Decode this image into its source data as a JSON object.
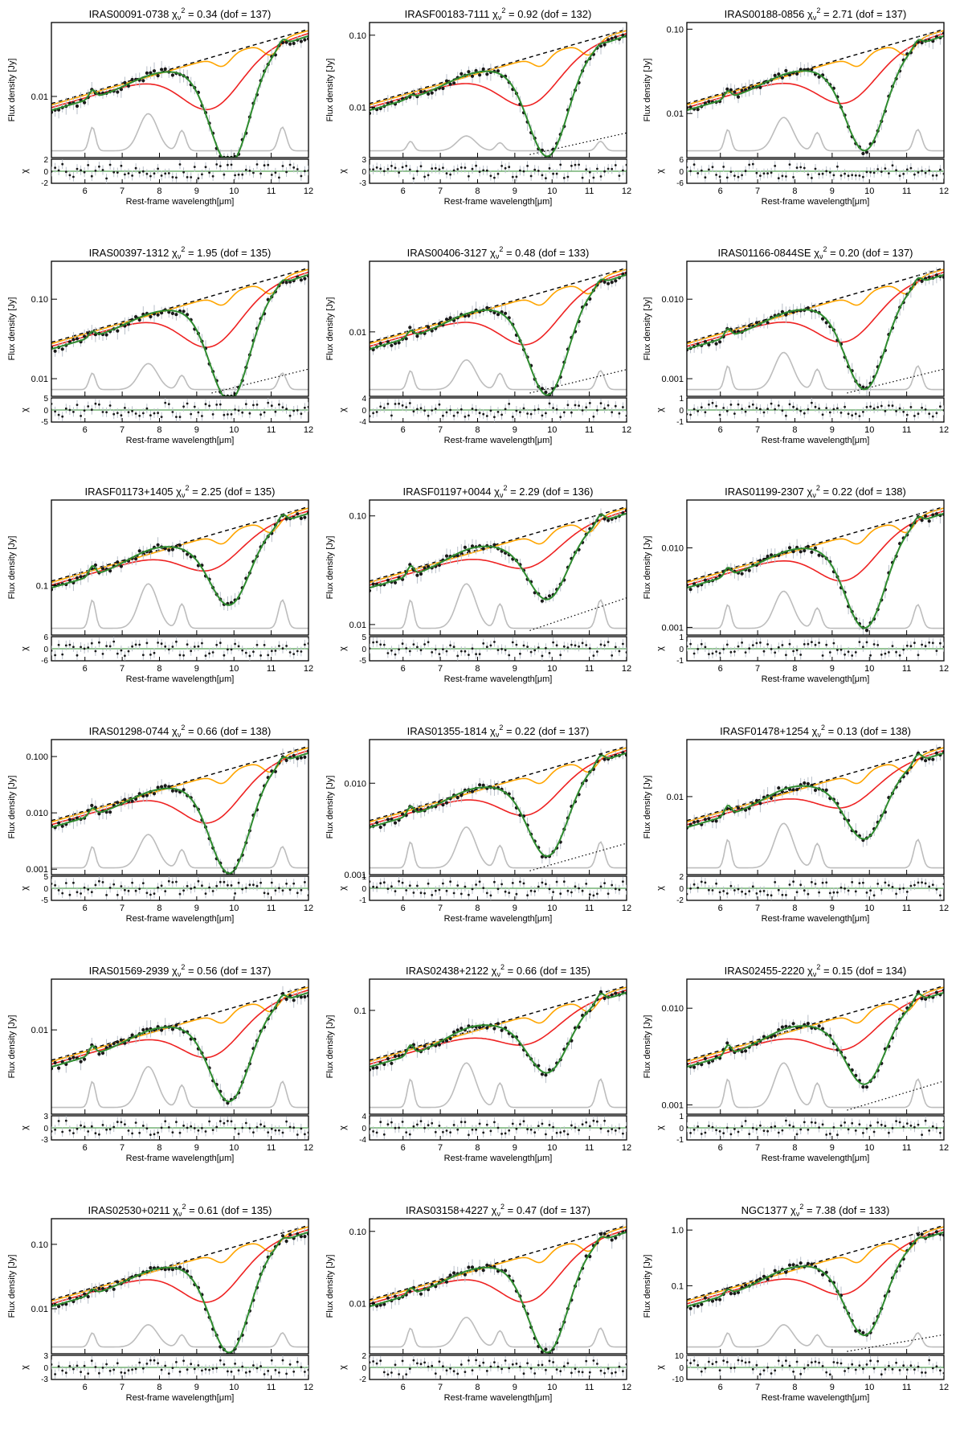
{
  "figure": {
    "ylabel_main": "Flux density [Jy]",
    "ylabel_resid": "χ",
    "xlabel": "Rest-frame wavelength[μm]",
    "chi_label": "χ",
    "chi_sub": "ν",
    "chi_sup": "2",
    "x_ticks": [
      "6",
      "7",
      "8",
      "9",
      "10",
      "11",
      "12"
    ],
    "colors": {
      "data": "#1a1a1a",
      "errorbar": "#b8bfc8",
      "model": "#2e8b2e",
      "continuum_dashed": "#000000",
      "orange": "#ffa500",
      "red": "#ee2222",
      "blue": "#1f2fe0",
      "pah": "#bdbdbd",
      "zero_line": "#2e8b2e"
    }
  },
  "chart_data": [
    {
      "type": "line",
      "name": "IRAS00091-0738",
      "chi2": "0.34",
      "dof": "137",
      "xlim": [
        5.1,
        12
      ],
      "ylim_log": [
        0.002,
        0.07
      ],
      "yticks": [
        "0.01"
      ],
      "resid_ticks": [
        "2",
        "0",
        "-2"
      ],
      "depth": 0.92,
      "pah": 0.5,
      "dotted": false,
      "xlabel": "Rest-frame wavelength[μm]"
    },
    {
      "type": "line",
      "name": "IRASF00183-7111",
      "chi2": "0.92",
      "dof": "132",
      "xlim": [
        5.1,
        12
      ],
      "ylim_log": [
        0.002,
        0.15
      ],
      "yticks": [
        "0.10",
        "0.01"
      ],
      "resid_ticks": [
        "3",
        "0",
        "-3"
      ],
      "depth": 0.85,
      "pah": 0.2,
      "dotted": true,
      "xlabel": "Rest-frame wavelength[μm]"
    },
    {
      "type": "line",
      "name": "IRAS00188-0856",
      "chi2": "2.71",
      "dof": "137",
      "xlim": [
        5.1,
        12
      ],
      "ylim_log": [
        0.003,
        0.12
      ],
      "yticks": [
        "0.10",
        "0.01"
      ],
      "resid_ticks": [
        "6",
        "0",
        "-6"
      ],
      "depth": 0.8,
      "pah": 0.45,
      "dotted": false,
      "xlabel": "Rest-frame wavelength[μm]"
    },
    {
      "type": "line",
      "name": "IRAS00397-1312",
      "chi2": "1.95",
      "dof": "135",
      "xlim": [
        5.1,
        12
      ],
      "ylim_log": [
        0.006,
        0.3
      ],
      "yticks": [
        "0.10",
        "0.01"
      ],
      "resid_ticks": [
        "5",
        "0",
        "-5"
      ],
      "depth": 0.9,
      "pah": 0.35,
      "dotted": true,
      "xlabel": "Rest-frame wavelength[μm]"
    },
    {
      "type": "line",
      "name": "IRAS00406-3127",
      "chi2": "0.48",
      "dof": "133",
      "xlim": [
        5.1,
        12
      ],
      "ylim_log": [
        0.0015,
        0.08
      ],
      "yticks": [
        "0.01"
      ],
      "resid_ticks": [
        "4",
        "0",
        "-4"
      ],
      "depth": 0.85,
      "pah": 0.4,
      "dotted": true,
      "xlabel": "Rest-frame wavelength[μm]"
    },
    {
      "type": "line",
      "name": "IRAS01166-0844SE",
      "chi2": "0.20",
      "dof": "137",
      "xlim": [
        5.1,
        12
      ],
      "ylim_log": [
        0.0006,
        0.03
      ],
      "yticks": [
        "0.010",
        "0.001"
      ],
      "resid_ticks": [
        "1",
        "0",
        "-1"
      ],
      "depth": 0.8,
      "pah": 0.5,
      "dotted": true,
      "xlabel": "Rest-frame wavelength[μm]"
    },
    {
      "type": "line",
      "name": "IRASF01173+1405",
      "chi2": "2.25",
      "dof": "135",
      "xlim": [
        5.1,
        12
      ],
      "ylim_log": [
        0.03,
        0.8
      ],
      "yticks": [
        "0.1"
      ],
      "resid_ticks": [
        "6",
        "0",
        "-6"
      ],
      "depth": 0.6,
      "pah": 0.6,
      "dotted": false,
      "xlabel": "Rest-frame wavelength[μm]"
    },
    {
      "type": "line",
      "name": "IRASF01197+0044",
      "chi2": "2.29",
      "dof": "136",
      "xlim": [
        5.1,
        12
      ],
      "ylim_log": [
        0.008,
        0.14
      ],
      "yticks": [
        "0.10",
        "0.01"
      ],
      "resid_ticks": [
        "5",
        "0",
        "-5"
      ],
      "depth": 0.55,
      "pah": 0.6,
      "dotted": true,
      "xlabel": "Rest-frame wavelength[μm]"
    },
    {
      "type": "line",
      "name": "IRAS01199-2307",
      "chi2": "0.22",
      "dof": "138",
      "xlim": [
        5.1,
        12
      ],
      "ylim_log": [
        0.0008,
        0.04
      ],
      "yticks": [
        "0.010",
        "0.001"
      ],
      "resid_ticks": [
        "1",
        "0",
        "-1"
      ],
      "depth": 0.8,
      "pah": 0.5,
      "dotted": false,
      "xlabel": "Rest-frame wavelength[μm]"
    },
    {
      "type": "line",
      "name": "IRAS01298-0744",
      "chi2": "0.66",
      "dof": "138",
      "xlim": [
        5.1,
        12
      ],
      "ylim_log": [
        0.0008,
        0.2
      ],
      "yticks": [
        "0.100",
        "0.010",
        "0.001"
      ],
      "resid_ticks": [
        "5",
        "0",
        "-5"
      ],
      "depth": 0.85,
      "pah": 0.45,
      "dotted": false,
      "xlabel": "Rest-frame wavelength[μm]"
    },
    {
      "type": "line",
      "name": "IRAS01355-1814",
      "chi2": "0.22",
      "dof": "137",
      "xlim": [
        5.1,
        12
      ],
      "ylim_log": [
        0.001,
        0.03
      ],
      "yticks": [
        "0.010",
        "0.001"
      ],
      "resid_ticks": [
        "1",
        "0",
        "-1"
      ],
      "depth": 0.7,
      "pah": 0.55,
      "dotted": true,
      "xlabel": "Rest-frame wavelength[μm]"
    },
    {
      "type": "line",
      "name": "IRASF01478+1254",
      "chi2": "0.13",
      "dof": "138",
      "xlim": [
        5.1,
        12
      ],
      "ylim_log": [
        0.0015,
        0.04
      ],
      "yticks": [
        "0.01"
      ],
      "resid_ticks": [
        "2",
        "0",
        "-2"
      ],
      "depth": 0.55,
      "pah": 0.6,
      "dotted": false,
      "xlabel": "Rest-frame wavelength[μm]"
    },
    {
      "type": "line",
      "name": "IRAS01569-2939",
      "chi2": "0.56",
      "dof": "137",
      "xlim": [
        5.1,
        12
      ],
      "ylim_log": [
        0.001,
        0.04
      ],
      "yticks": [
        "0.01"
      ],
      "resid_ticks": [
        "3",
        "0",
        "-3"
      ],
      "depth": 0.75,
      "pah": 0.55,
      "dotted": false,
      "xlabel": "Rest-frame wavelength[μm]"
    },
    {
      "type": "line",
      "name": "IRAS02438+2122",
      "chi2": "0.66",
      "dof": "135",
      "xlim": [
        5.1,
        12
      ],
      "ylim_log": [
        0.01,
        0.2
      ],
      "yticks": [
        "0.1"
      ],
      "resid_ticks": [
        "4",
        "0",
        "-4"
      ],
      "depth": 0.5,
      "pah": 0.6,
      "dotted": false,
      "xlabel": "Rest-frame wavelength[μm]"
    },
    {
      "type": "line",
      "name": "IRAS02455-2220",
      "chi2": "0.15",
      "dof": "134",
      "xlim": [
        5.1,
        12
      ],
      "ylim_log": [
        0.0008,
        0.02
      ],
      "yticks": [
        "0.010",
        "0.001"
      ],
      "resid_ticks": [
        "1",
        "0",
        "-1"
      ],
      "depth": 0.6,
      "pah": 0.6,
      "dotted": true,
      "xlabel": "Rest-frame wavelength[μm]"
    },
    {
      "type": "line",
      "name": "IRAS02530+0211",
      "chi2": "0.61",
      "dof": "135",
      "xlim": [
        5.1,
        12
      ],
      "ylim_log": [
        0.002,
        0.25
      ],
      "yticks": [
        "0.10",
        "0.01"
      ],
      "resid_ticks": [
        "3",
        "0",
        "-3"
      ],
      "depth": 0.85,
      "pah": 0.3,
      "dotted": false,
      "xlabel": "Rest-frame wavelength[μm]"
    },
    {
      "type": "line",
      "name": "IRAS03158+4227",
      "chi2": "0.47",
      "dof": "137",
      "xlim": [
        5.1,
        12
      ],
      "ylim_log": [
        0.002,
        0.15
      ],
      "yticks": [
        "0.10",
        "0.01"
      ],
      "resid_ticks": [
        "2",
        "0",
        "-2"
      ],
      "depth": 0.85,
      "pah": 0.4,
      "dotted": false,
      "xlabel": "Rest-frame wavelength[μm]"
    },
    {
      "type": "line",
      "name": "NGC1377",
      "chi2": "7.38",
      "dof": "133",
      "xlim": [
        5.1,
        12
      ],
      "ylim_log": [
        0.006,
        1.6
      ],
      "yticks": [
        "1.0",
        "0.1"
      ],
      "resid_ticks": [
        "10",
        "0",
        "-10"
      ],
      "depth": 0.7,
      "pah": 0.3,
      "dotted": true,
      "xlabel": "Rest-frame wavelength[μm]"
    }
  ]
}
